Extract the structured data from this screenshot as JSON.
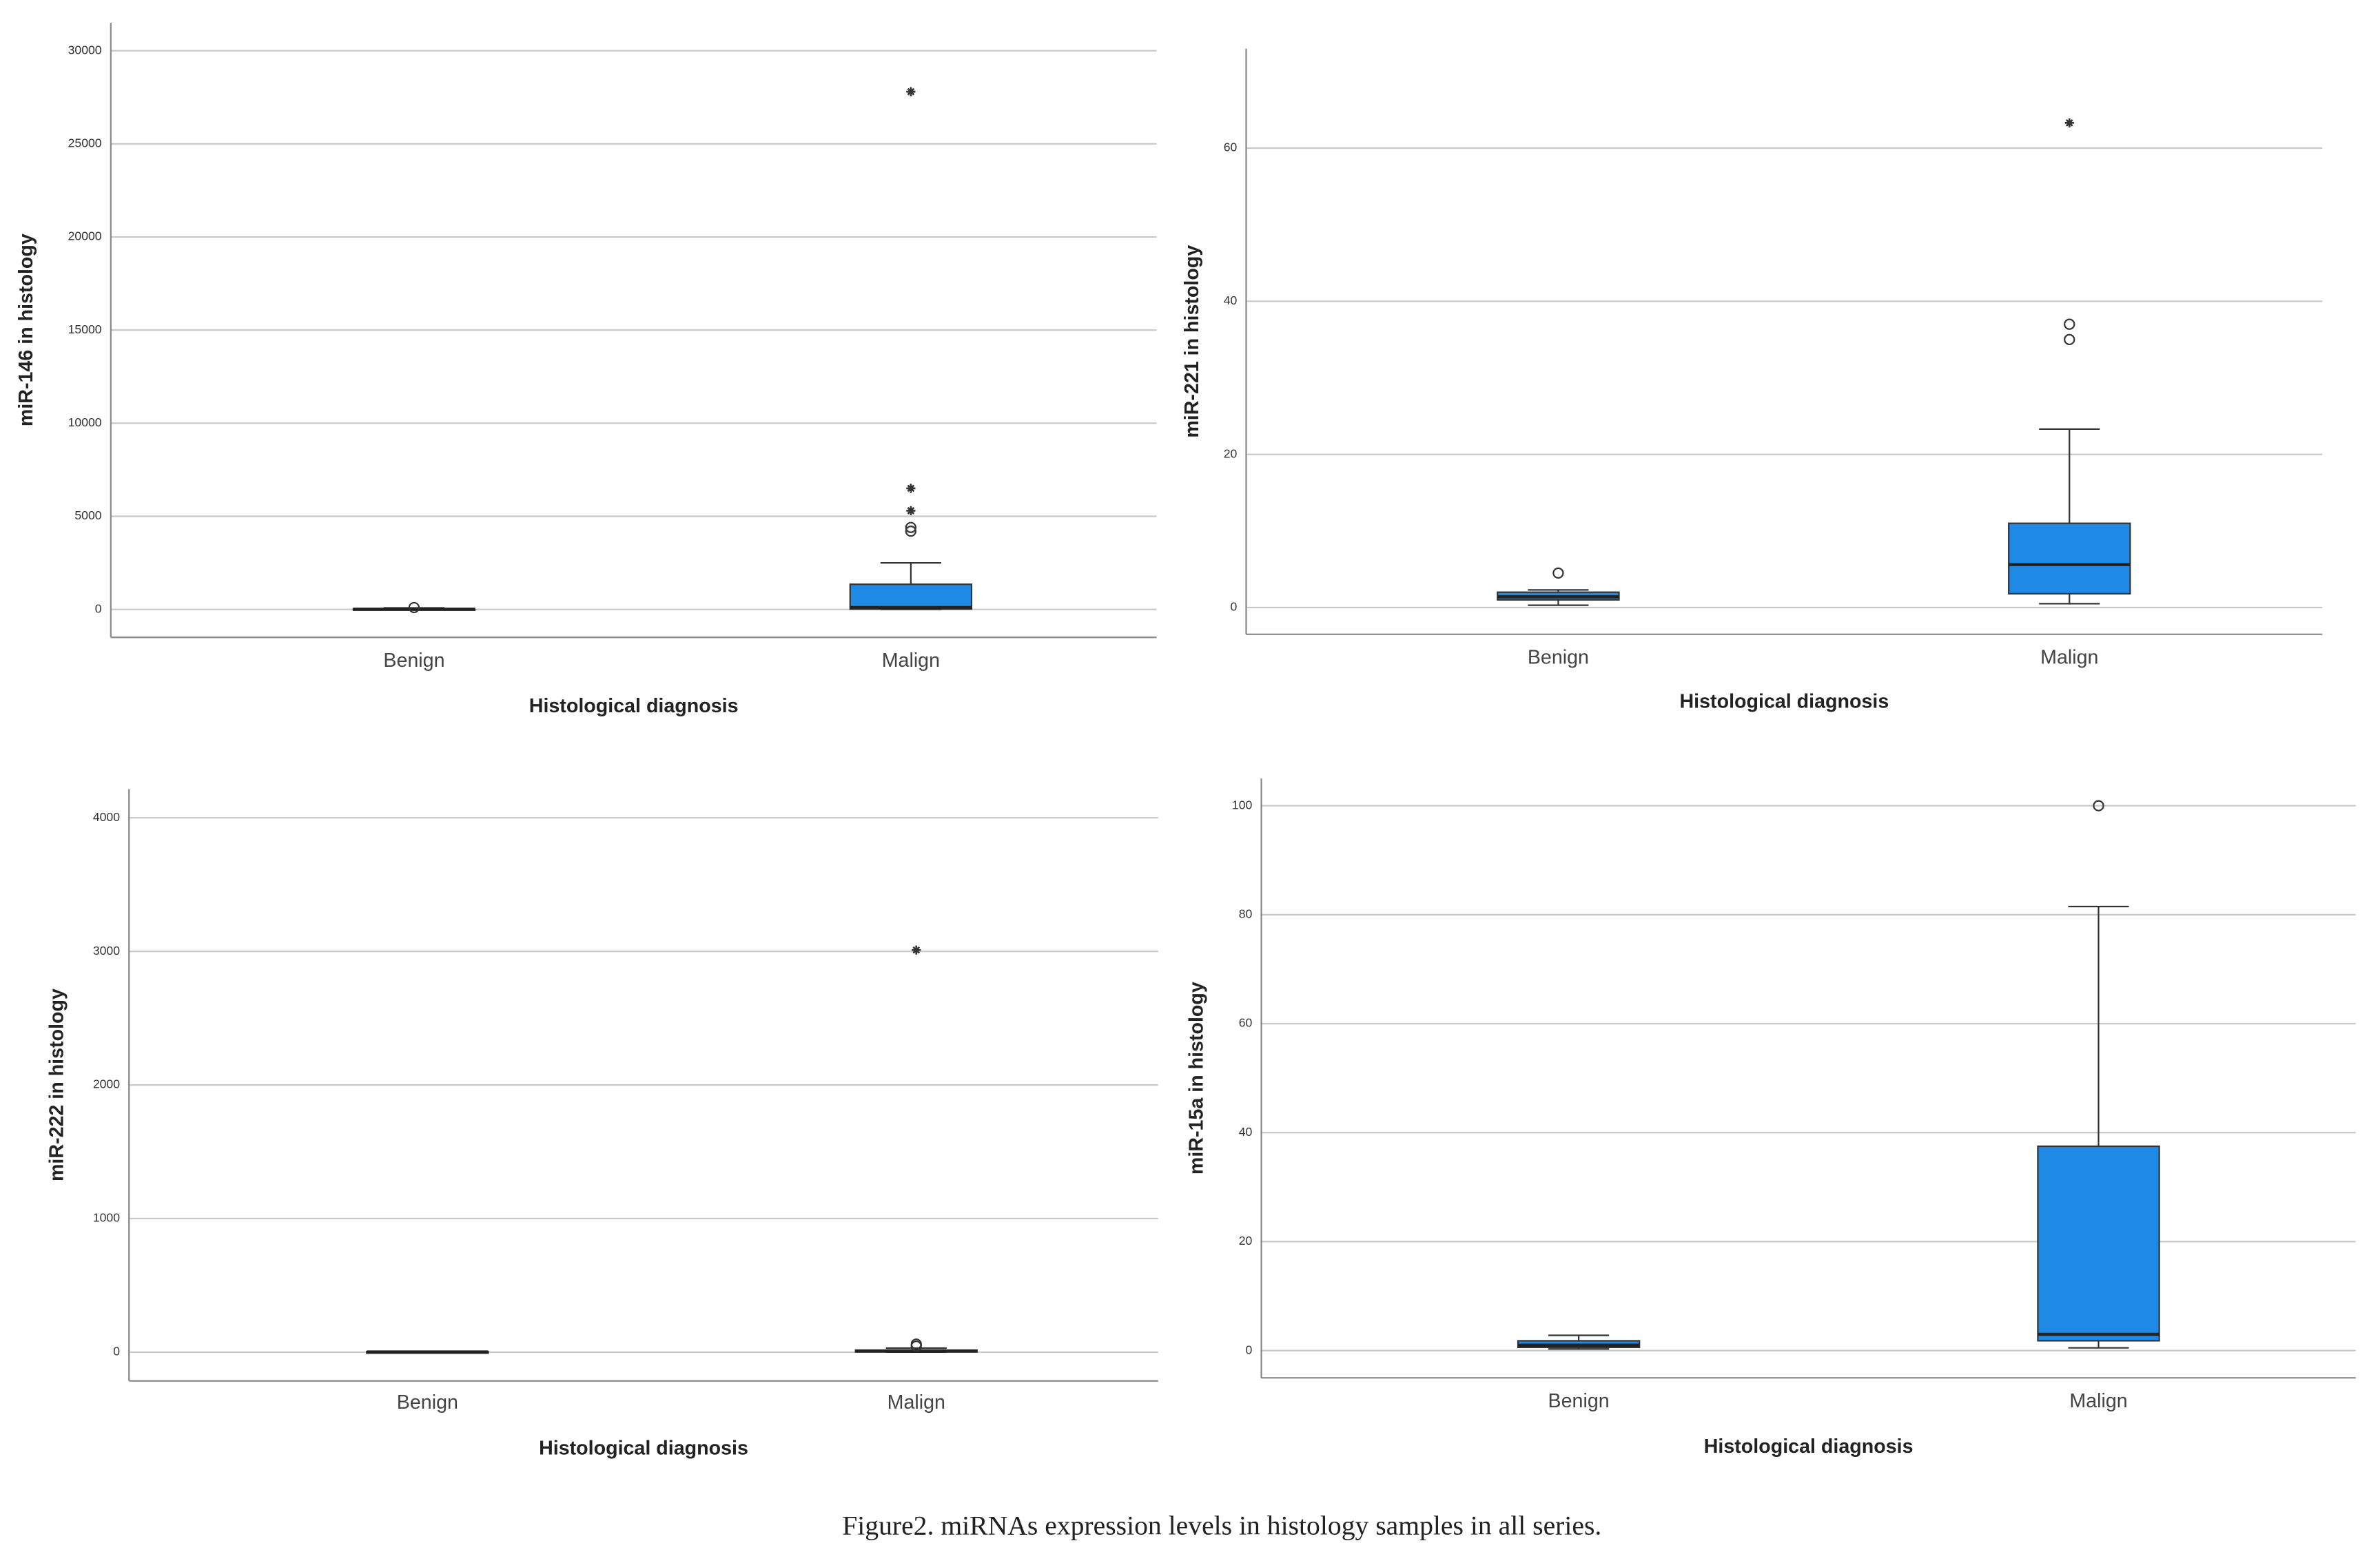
{
  "chart_data": [
    {
      "type": "box",
      "ylabel": "miR-146 in histology",
      "xlabel": "Histological diagnosis",
      "categories": [
        "Benign",
        "Malign"
      ],
      "color": "#1e8ae6",
      "ylim": [
        -1500,
        31500
      ],
      "yticks": [
        0,
        5000,
        10000,
        15000,
        20000,
        25000,
        30000
      ],
      "grid": true,
      "boxes": [
        {
          "min": 0,
          "q1": 5,
          "median": 15,
          "q3": 40,
          "max": 80,
          "outliers": [
            100
          ],
          "extremes": []
        },
        {
          "min": 0,
          "q1": 20,
          "median": 100,
          "q3": 1350,
          "max": 2500,
          "outliers": [
            4200,
            4400
          ],
          "extremes": [
            5300,
            6500,
            27800
          ]
        }
      ]
    },
    {
      "type": "box",
      "ylabel": "miR-221 in histology",
      "xlabel": "Histological diagnosis",
      "categories": [
        "Benign",
        "Malign"
      ],
      "color": "#1e8ae6",
      "ylim": [
        -3.5,
        73
      ],
      "yticks": [
        0,
        20,
        40,
        60
      ],
      "grid": true,
      "boxes": [
        {
          "min": 0.3,
          "q1": 1,
          "median": 1.4,
          "q3": 2,
          "max": 2.3,
          "outliers": [
            4.5
          ],
          "extremes": []
        },
        {
          "min": 0.5,
          "q1": 1.8,
          "median": 5.6,
          "q3": 11,
          "max": 23.3,
          "outliers": [
            35,
            37
          ],
          "extremes": [
            63.3
          ]
        }
      ]
    },
    {
      "type": "box",
      "ylabel": "miR-222 in histology",
      "xlabel": "Histological diagnosis",
      "categories": [
        "Benign",
        "Malign"
      ],
      "color": "#1e8ae6",
      "ylim": [
        -215,
        4215
      ],
      "yticks": [
        0,
        1000,
        2000,
        3000,
        4000
      ],
      "grid": true,
      "boxes": [
        {
          "min": 0,
          "q1": 1,
          "median": 2,
          "q3": 4,
          "max": 6,
          "outliers": [],
          "extremes": []
        },
        {
          "min": 0,
          "q1": 2,
          "median": 8,
          "q3": 15,
          "max": 30,
          "outliers": [
            45,
            60
          ],
          "extremes": [
            3010
          ]
        }
      ]
    },
    {
      "type": "box",
      "ylabel": "miR-15a in histology",
      "xlabel": "Histological diagnosis",
      "categories": [
        "Benign",
        "Malign"
      ],
      "color": "#1e8ae6",
      "ylim": [
        -5,
        105
      ],
      "yticks": [
        0,
        20,
        40,
        60,
        80,
        100
      ],
      "grid": true,
      "boxes": [
        {
          "min": 0.3,
          "q1": 0.6,
          "median": 1,
          "q3": 1.8,
          "max": 2.8,
          "outliers": [],
          "extremes": []
        },
        {
          "min": 0.5,
          "q1": 1.8,
          "median": 3,
          "q3": 37.5,
          "max": 81.5,
          "outliers": [
            100
          ],
          "extremes": []
        }
      ]
    }
  ],
  "caption": "Figure2. miRNAs expression levels in histology samples in all series."
}
